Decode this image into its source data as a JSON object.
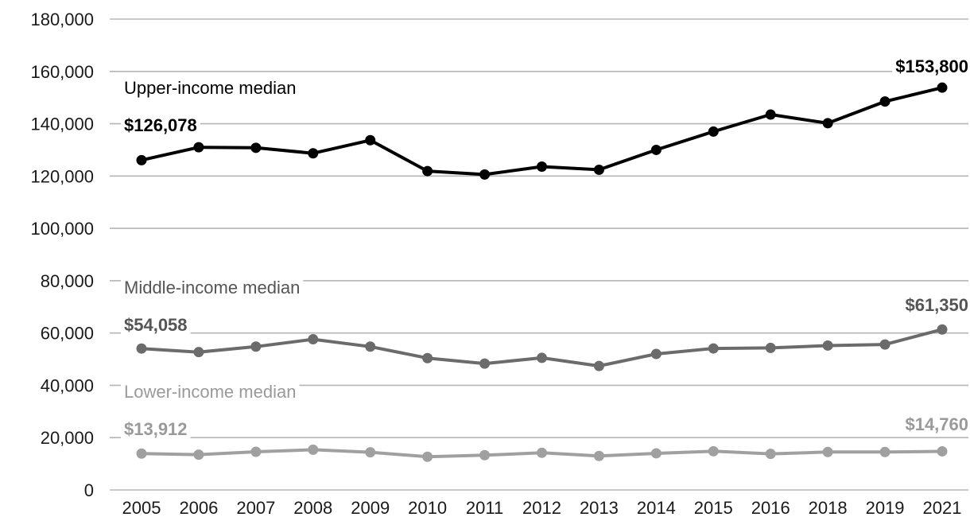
{
  "chart_data": {
    "type": "line",
    "categories": [
      "2005",
      "2006",
      "2007",
      "2008",
      "2009",
      "2010",
      "2011",
      "2012",
      "2013",
      "2014",
      "2015",
      "2016",
      "2018",
      "2019",
      "2021"
    ],
    "ylim": [
      0,
      180000
    ],
    "yticks": [
      0,
      20000,
      40000,
      60000,
      80000,
      100000,
      120000,
      140000,
      160000,
      180000
    ],
    "ytick_labels": [
      "0",
      "20,000",
      "40,000",
      "60,000",
      "80,000",
      "100,000",
      "120,000",
      "140,000",
      "160,000",
      "180,000"
    ],
    "grid": true,
    "series": [
      {
        "name": "Upper-income median",
        "color": "#000000",
        "values": [
          126078,
          131000,
          130800,
          128700,
          133700,
          121900,
          120600,
          123600,
          122400,
          130000,
          137000,
          143500,
          140200,
          148500,
          153800
        ],
        "start_label": "$126,078",
        "end_label": "$153,800"
      },
      {
        "name": "Middle-income median",
        "color": "#6b6b6b",
        "values": [
          54058,
          52700,
          54800,
          57600,
          54800,
          50400,
          48300,
          50500,
          47400,
          52000,
          54100,
          54300,
          55200,
          55600,
          61350
        ],
        "start_label": "$54,058",
        "end_label": "$61,350"
      },
      {
        "name": "Lower-income median",
        "color": "#a0a0a0",
        "values": [
          13912,
          13500,
          14600,
          15400,
          14400,
          12700,
          13300,
          14200,
          13000,
          14000,
          14800,
          13800,
          14500,
          14500,
          14760
        ],
        "start_label": "$13,912",
        "end_label": "$14,760"
      }
    ]
  }
}
